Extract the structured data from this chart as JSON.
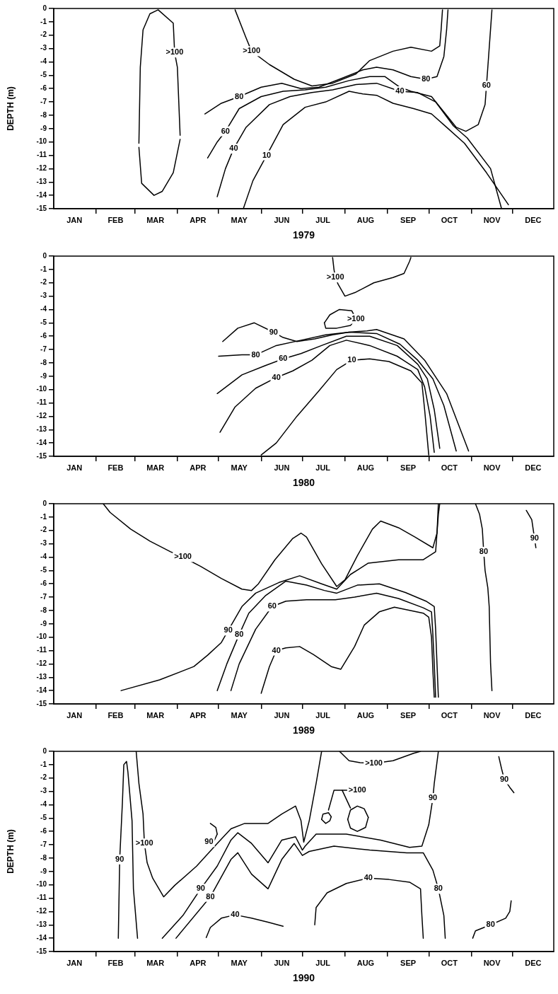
{
  "chart_data": [
    {
      "type": "line",
      "xlabel": "1979",
      "ylabel": "DEPTH (m)",
      "marker": "none",
      "grid": false,
      "xlim": [
        "--01-01",
        "--12-31"
      ],
      "ylim": [
        -15,
        0
      ],
      "xticks": [
        {
          "value": "--01-16",
          "label": "JAN"
        },
        {
          "value": "--02-01",
          "label": null
        },
        {
          "value": "--02-15",
          "label": "FEB"
        },
        {
          "value": "--03-01",
          "label": null
        },
        {
          "value": "--03-16",
          "label": "MAR"
        },
        {
          "value": "--04-01",
          "label": null
        },
        {
          "value": "--04-16",
          "label": "APR"
        },
        {
          "value": "--05-01",
          "label": null
        },
        {
          "value": "--05-16",
          "label": "MAY"
        },
        {
          "value": "--06-01",
          "label": null
        },
        {
          "value": "--06-16",
          "label": "JUN"
        },
        {
          "value": "--07-01",
          "label": null
        },
        {
          "value": "--07-16",
          "label": "JUL"
        },
        {
          "value": "--08-01",
          "label": null
        },
        {
          "value": "--08-16",
          "label": "AUG"
        },
        {
          "value": "--09-01",
          "label": null
        },
        {
          "value": "--09-16",
          "label": "SEP"
        },
        {
          "value": "--10-01",
          "label": null
        },
        {
          "value": "--10-16",
          "label": "OCT"
        },
        {
          "value": "--11-01",
          "label": null
        },
        {
          "value": "--11-16",
          "label": "NOV"
        },
        {
          "value": "--12-01",
          "label": null
        },
        {
          "value": "--12-16",
          "label": "DEC"
        }
      ],
      "yticks": [
        0,
        -1,
        -2,
        -3,
        -4,
        -5,
        -6,
        -7,
        -8,
        -9,
        -10,
        -11,
        -12,
        -13,
        -14,
        -15
      ],
      "series": [
        {
          "color": "#000000",
          "x": [
            "--03-04",
            "--03-05",
            "--03-07",
            "--03-12",
            "--03-18",
            "--03-29",
            "--03-30",
            "--04-01",
            "--04-03"
          ],
          "values": [
            -10.1,
            -4.4,
            -1.6,
            -0.4,
            -0.1,
            -1.1,
            -3.3,
            -4.4,
            -9.5
          ]
        },
        {
          "color": "#000000",
          "x": [
            "--03-04",
            "--03-06",
            "--03-15",
            "--03-21",
            "--03-29",
            "--04-03"
          ],
          "values": [
            -10.4,
            -13.1,
            -14.0,
            -13.7,
            -12.3,
            -9.8
          ]
        },
        {
          "color": "#000000",
          "x": [
            "--05-13",
            "--05-21",
            "--05-25",
            "--06-07",
            "--06-25",
            "--07-08",
            "--07-23",
            "--08-09",
            "--08-19",
            "--09-05",
            "--09-18",
            "--10-03",
            "--10-09",
            "--10-10",
            "--10-11"
          ],
          "values": [
            -0.1,
            -2.2,
            -3.2,
            -4.2,
            -5.3,
            -5.8,
            -5.6,
            -4.9,
            -3.9,
            -3.2,
            -2.9,
            -3.2,
            -2.8,
            -1.6,
            -0.1
          ]
        },
        {
          "color": "#000000",
          "x": [
            "--04-21",
            "--05-03",
            "--05-16",
            "--06-01",
            "--06-16",
            "--06-30",
            "--07-13",
            "--07-28",
            "--08-14",
            "--08-24",
            "--09-05",
            "--09-18",
            "--09-29",
            "--10-07",
            "--10-12",
            "--10-14",
            "--10-15"
          ],
          "values": [
            -7.9,
            -7.1,
            -6.6,
            -5.9,
            -5.6,
            -6.0,
            -5.9,
            -5.3,
            -4.6,
            -4.4,
            -4.6,
            -5.1,
            -5.3,
            -5.1,
            -3.6,
            -1.6,
            -0.1
          ]
        },
        {
          "color": "#000000",
          "x": [
            "--04-23",
            "--04-30",
            "--05-06",
            "--05-16",
            "--06-01",
            "--06-17",
            "--07-03",
            "--07-18",
            "--08-04",
            "--08-19",
            "--08-30",
            "--09-10",
            "--09-18",
            "--10-03",
            "--10-14",
            "--10-21",
            "--10-28",
            "--11-06",
            "--11-11",
            "--11-12",
            "--11-13",
            "--11-16"
          ],
          "values": [
            -11.2,
            -10.0,
            -9.2,
            -7.5,
            -6.6,
            -6.2,
            -6.1,
            -5.9,
            -5.4,
            -5.1,
            -5.1,
            -5.9,
            -6.2,
            -6.6,
            -8.0,
            -8.9,
            -9.2,
            -8.7,
            -7.2,
            -5.8,
            -4.4,
            -0.1
          ]
        },
        {
          "color": "#000000",
          "x": [
            "--04-30",
            "--05-06",
            "--05-12",
            "--05-21",
            "--06-07",
            "--06-22",
            "--07-08",
            "--07-23",
            "--08-09",
            "--08-24",
            "--09-10",
            "--09-23",
            "--10-06",
            "--10-19",
            "--10-29",
            "--11-15",
            "--11-23"
          ],
          "values": [
            -14.1,
            -12.0,
            -10.5,
            -8.9,
            -7.2,
            -6.6,
            -6.3,
            -6.1,
            -5.7,
            -5.6,
            -6.2,
            -6.3,
            -7.0,
            -8.8,
            -9.7,
            -12.0,
            -15.0
          ]
        },
        {
          "color": "#000000",
          "x": [
            "--05-19",
            "--05-26",
            "--06-05",
            "--06-17",
            "--07-03",
            "--07-18",
            "--08-04",
            "--08-14",
            "--08-24",
            "--09-05",
            "--09-20",
            "--10-03",
            "--10-14",
            "--10-27",
            "--11-12",
            "--11-28"
          ],
          "values": [
            -15.0,
            -12.9,
            -11.0,
            -8.7,
            -7.4,
            -7.0,
            -6.2,
            -6.4,
            -6.5,
            -7.1,
            -7.5,
            -7.9,
            -8.9,
            -10.1,
            -12.3,
            -14.7
          ]
        }
      ],
      "annotations": [
        {
          "text": ">100",
          "x": "--03-30",
          "y": -3.3
        },
        {
          "text": ">100",
          "x": "--05-25",
          "y": -3.2
        },
        {
          "text": "80",
          "x": "--05-16",
          "y": -6.6
        },
        {
          "text": "60",
          "x": "--05-06",
          "y": -9.2
        },
        {
          "text": "40",
          "x": "--05-12",
          "y": -10.5
        },
        {
          "text": "10",
          "x": "--06-05",
          "y": -11.0
        },
        {
          "text": "80",
          "x": "--09-29",
          "y": -5.3
        },
        {
          "text": "40",
          "x": "--09-10",
          "y": -6.2
        },
        {
          "text": "60",
          "x": "--11-12",
          "y": -5.8
        }
      ]
    },
    {
      "type": "line",
      "xlabel": "1980",
      "marker": "none",
      "grid": false,
      "xlim": [
        "--01-01",
        "--12-31"
      ],
      "ylim": [
        -15,
        0
      ],
      "xticks": [
        {
          "value": "--01-16",
          "label": "JAN"
        },
        {
          "value": "--02-01",
          "label": null
        },
        {
          "value": "--02-15",
          "label": "FEB"
        },
        {
          "value": "--03-01",
          "label": null
        },
        {
          "value": "--03-16",
          "label": "MAR"
        },
        {
          "value": "--04-01",
          "label": null
        },
        {
          "value": "--04-16",
          "label": "APR"
        },
        {
          "value": "--05-01",
          "label": null
        },
        {
          "value": "--05-16",
          "label": "MAY"
        },
        {
          "value": "--06-01",
          "label": null
        },
        {
          "value": "--06-16",
          "label": "JUN"
        },
        {
          "value": "--07-01",
          "label": null
        },
        {
          "value": "--07-16",
          "label": "JUL"
        },
        {
          "value": "--08-01",
          "label": null
        },
        {
          "value": "--08-16",
          "label": "AUG"
        },
        {
          "value": "--09-01",
          "label": null
        },
        {
          "value": "--09-16",
          "label": "SEP"
        },
        {
          "value": "--10-01",
          "label": null
        },
        {
          "value": "--10-16",
          "label": "OCT"
        },
        {
          "value": "--11-01",
          "label": null
        },
        {
          "value": "--11-16",
          "label": "NOV"
        },
        {
          "value": "--12-01",
          "label": null
        },
        {
          "value": "--12-16",
          "label": "DEC"
        }
      ],
      "yticks": [
        0,
        -1,
        -2,
        -3,
        -4,
        -5,
        -6,
        -7,
        -8,
        -9,
        -10,
        -11,
        -12,
        -13,
        -14,
        -15
      ],
      "series": [
        {
          "color": "#000000",
          "x": [
            "--07-23",
            "--07-24",
            "--07-25",
            "--07-27",
            "--08-01",
            "--08-09",
            "--08-22",
            "--09-05",
            "--09-13",
            "--09-17",
            "--09-18"
          ],
          "values": [
            -0.1,
            -1.0,
            -1.6,
            -2.1,
            -3.0,
            -2.7,
            -2.0,
            -1.6,
            -1.3,
            -0.4,
            -0.1
          ]
        },
        {
          "color": "#000000",
          "x": [
            "--07-17",
            "--07-21",
            "--07-28",
            "--08-06",
            "--08-09"
          ],
          "values": [
            -5.0,
            -4.4,
            -4.0,
            -4.1,
            -4.7
          ]
        },
        {
          "color": "#000000",
          "x": [
            "--07-17",
            "--07-18",
            "--07-26",
            "--08-05",
            "--08-09"
          ],
          "values": [
            -5.0,
            -5.4,
            -5.4,
            -5.2,
            -4.7
          ]
        },
        {
          "color": "#000000",
          "x": [
            "--05-04",
            "--05-15",
            "--05-27",
            "--06-10",
            "--06-17",
            "--06-27",
            "--07-10",
            "--07-23",
            "--08-04",
            "--08-17",
            "--08-24",
            "--09-13",
            "--09-28",
            "--10-14",
            "--10-30"
          ],
          "values": [
            -6.4,
            -5.4,
            -5.0,
            -5.7,
            -6.1,
            -6.4,
            -6.2,
            -5.9,
            -5.7,
            -5.6,
            -5.5,
            -6.2,
            -7.8,
            -10.3,
            -14.6
          ]
        },
        {
          "color": "#000000",
          "x": [
            "--05-01",
            "--05-18",
            "--05-28",
            "--06-12",
            "--06-30",
            "--07-18",
            "--08-04",
            "--08-24",
            "--09-10",
            "--09-23",
            "--10-04",
            "--10-12",
            "--10-21"
          ],
          "values": [
            -7.5,
            -7.4,
            -7.4,
            -6.7,
            -6.3,
            -5.9,
            -5.7,
            -5.8,
            -6.6,
            -7.8,
            -9.2,
            -11.2,
            -14.6
          ]
        },
        {
          "color": "#000000",
          "x": [
            "--04-30",
            "--05-18",
            "--06-04",
            "--06-17",
            "--06-30",
            "--07-15",
            "--08-02",
            "--08-19",
            "--09-08",
            "--09-23",
            "--09-30",
            "--10-05",
            "--10-09"
          ],
          "values": [
            -10.3,
            -8.9,
            -8.2,
            -7.7,
            -7.3,
            -6.7,
            -6.0,
            -6.0,
            -6.7,
            -8.1,
            -9.2,
            -11.5,
            -14.4
          ]
        },
        {
          "color": "#000000",
          "x": [
            "--05-02",
            "--05-13",
            "--05-28",
            "--06-12",
            "--06-24",
            "--07-08",
            "--07-21",
            "--08-02",
            "--08-19",
            "--09-08",
            "--09-23",
            "--09-28",
            "--10-02",
            "--10-05"
          ],
          "values": [
            -13.2,
            -11.3,
            -9.9,
            -9.1,
            -8.6,
            -7.8,
            -6.7,
            -6.3,
            -6.7,
            -7.5,
            -8.5,
            -9.8,
            -12.0,
            -14.7
          ]
        },
        {
          "color": "#000000",
          "x": [
            "--06-01",
            "--06-12",
            "--06-27",
            "--07-13",
            "--07-26",
            "--08-06",
            "--08-19",
            "--09-02",
            "--09-18",
            "--09-26",
            "--09-28",
            "--10-01"
          ],
          "values": [
            -14.9,
            -14.0,
            -12.0,
            -10.1,
            -8.5,
            -7.8,
            -7.7,
            -7.9,
            -8.6,
            -9.5,
            -11.5,
            -14.9
          ]
        }
      ],
      "annotations": [
        {
          "text": ">100",
          "x": "--07-25",
          "y": -1.6
        },
        {
          "text": ">100",
          "x": "--08-09",
          "y": -4.7
        },
        {
          "text": "90",
          "x": "--06-10",
          "y": -5.7
        },
        {
          "text": "80",
          "x": "--05-28",
          "y": -7.4
        },
        {
          "text": "60",
          "x": "--06-17",
          "y": -7.7
        },
        {
          "text": "40",
          "x": "--06-12",
          "y": -9.1
        },
        {
          "text": "10",
          "x": "--08-06",
          "y": -7.8
        }
      ]
    },
    {
      "type": "line",
      "xlabel": "1989",
      "marker": "none",
      "grid": false,
      "xlim": [
        "--01-01",
        "--12-31"
      ],
      "ylim": [
        -15,
        0
      ],
      "xticks": [
        {
          "value": "--01-16",
          "label": "JAN"
        },
        {
          "value": "--02-01",
          "label": null
        },
        {
          "value": "--02-15",
          "label": "FEB"
        },
        {
          "value": "--03-01",
          "label": null
        },
        {
          "value": "--03-16",
          "label": "MAR"
        },
        {
          "value": "--04-01",
          "label": null
        },
        {
          "value": "--04-16",
          "label": "APR"
        },
        {
          "value": "--05-01",
          "label": null
        },
        {
          "value": "--05-16",
          "label": "MAY"
        },
        {
          "value": "--06-01",
          "label": null
        },
        {
          "value": "--06-16",
          "label": "JUN"
        },
        {
          "value": "--07-01",
          "label": null
        },
        {
          "value": "--07-16",
          "label": "JUL"
        },
        {
          "value": "--08-01",
          "label": null
        },
        {
          "value": "--08-16",
          "label": "AUG"
        },
        {
          "value": "--09-01",
          "label": null
        },
        {
          "value": "--09-16",
          "label": "SEP"
        },
        {
          "value": "--10-01",
          "label": null
        },
        {
          "value": "--10-16",
          "label": "OCT"
        },
        {
          "value": "--11-01",
          "label": null
        },
        {
          "value": "--11-16",
          "label": "NOV"
        },
        {
          "value": "--12-01",
          "label": null
        },
        {
          "value": "--12-16",
          "label": "DEC"
        }
      ],
      "yticks": [
        0,
        -1,
        -2,
        -3,
        -4,
        -5,
        -6,
        -7,
        -8,
        -9,
        -10,
        -11,
        -12,
        -13,
        -14,
        -15
      ],
      "series": [
        {
          "color": "#000000",
          "x": [
            "--02-06",
            "--02-11",
            "--02-26",
            "--03-12",
            "--03-27",
            "--04-05",
            "--04-18",
            "--05-03",
            "--05-18",
            "--05-25",
            "--05-30",
            "--06-11",
            "--06-24",
            "--06-30",
            "--07-04",
            "--07-15",
            "--07-26",
            "--08-01",
            "--08-10",
            "--08-21",
            "--08-27",
            "--09-09",
            "--09-21",
            "--10-04",
            "--10-07",
            "--10-08"
          ],
          "values": [
            0,
            -0.65,
            -1.9,
            -2.8,
            -3.6,
            -4.0,
            -4.7,
            -5.6,
            -6.4,
            -6.5,
            -6.0,
            -4.2,
            -2.6,
            -2.2,
            -2.5,
            -4.5,
            -6.2,
            -5.7,
            -3.9,
            -1.9,
            -1.3,
            -1.8,
            -2.5,
            -3.3,
            -2.2,
            0
          ]
        },
        {
          "color": "#000000",
          "x": [
            "--02-19",
            "--03-19",
            "--04-13",
            "--04-23",
            "--05-03",
            "--05-08",
            "--05-18",
            "--05-28",
            "--06-14",
            "--06-29",
            "--07-15",
            "--07-26",
            "--08-05",
            "--08-18",
            "--09-09",
            "--09-27",
            "--10-06",
            "--10-08",
            "--10-09"
          ],
          "values": [
            -14.0,
            -13.2,
            -12.2,
            -11.35,
            -10.4,
            -9.5,
            -7.7,
            -6.7,
            -5.9,
            -5.4,
            -6.0,
            -6.4,
            -5.3,
            -4.45,
            -4.2,
            -4.2,
            -3.6,
            -0.8,
            0
          ]
        },
        {
          "color": "#000000",
          "x": [
            "--04-30",
            "--05-07",
            "--05-16",
            "--05-23",
            "--06-04",
            "--06-19",
            "--07-04",
            "--07-17",
            "--07-26",
            "--08-10",
            "--08-26",
            "--09-14",
            "--09-29",
            "--10-05",
            "--10-06",
            "--10-07",
            "--10-08"
          ],
          "values": [
            -14.0,
            -12.0,
            -9.8,
            -8.2,
            -6.9,
            -5.8,
            -6.1,
            -6.5,
            -6.7,
            -6.1,
            -6.0,
            -6.65,
            -7.3,
            -7.7,
            -9.4,
            -12.0,
            -14.5
          ]
        },
        {
          "color": "#000000",
          "x": [
            "--05-10",
            "--05-16",
            "--05-28",
            "--06-09",
            "--06-19",
            "--07-04",
            "--07-25",
            "--08-08",
            "--08-24",
            "--09-09",
            "--09-27",
            "--10-03",
            "--10-04",
            "--10-05",
            "--10-06"
          ],
          "values": [
            -14.0,
            -12.0,
            -9.4,
            -7.7,
            -7.3,
            -7.2,
            -7.2,
            -7.0,
            -6.7,
            -7.1,
            -7.8,
            -8.1,
            -9.8,
            -12.0,
            -14.5
          ]
        },
        {
          "color": "#000000",
          "x": [
            "--06-01",
            "--06-07",
            "--06-12",
            "--06-19",
            "--06-29",
            "--07-09",
            "--07-22",
            "--07-29",
            "--08-08",
            "--08-15",
            "--08-26",
            "--09-06",
            "--09-27",
            "--10-01",
            "--10-03",
            "--10-04",
            "--10-05"
          ],
          "values": [
            -14.2,
            -12.2,
            -11.0,
            -10.8,
            -10.7,
            -11.3,
            -12.2,
            -12.4,
            -10.7,
            -9.1,
            -8.1,
            -7.75,
            -8.2,
            -8.5,
            -10.0,
            -12.5,
            -14.5
          ]
        },
        {
          "color": "#000000",
          "x": [
            "--11-04",
            "--11-07",
            "--11-09",
            "--11-10",
            "--11-11",
            "--11-13",
            "--11-14",
            "--11-15",
            "--11-16"
          ],
          "values": [
            0,
            -0.8,
            -1.9,
            -3.6,
            -5.0,
            -6.3,
            -7.7,
            -12.0,
            -14.0
          ]
        },
        {
          "color": "#000000",
          "x": [
            "--12-11",
            "--12-15",
            "--12-16",
            "--12-17",
            "--12-18"
          ],
          "values": [
            -0.5,
            -1.2,
            -1.9,
            -2.6,
            -3.3
          ]
        }
      ],
      "annotations": [
        {
          "text": ">100",
          "x": "--04-05",
          "y": -4.0
        },
        {
          "text": "90",
          "x": "--05-08",
          "y": -9.5
        },
        {
          "text": "80",
          "x": "--05-16",
          "y": -9.8
        },
        {
          "text": "60",
          "x": "--06-09",
          "y": -7.7
        },
        {
          "text": "40",
          "x": "--06-12",
          "y": -11.0
        },
        {
          "text": "80",
          "x": "--11-10",
          "y": -3.6
        },
        {
          "text": "90",
          "x": "--12-17",
          "y": -2.6
        }
      ]
    },
    {
      "type": "line",
      "xlabel": "1990",
      "ylabel": "DEPTH (m)",
      "marker": "none",
      "grid": false,
      "xlim": [
        "--01-01",
        "--12-31"
      ],
      "ylim": [
        -15,
        0
      ],
      "xticks": [
        {
          "value": "--01-16",
          "label": "JAN"
        },
        {
          "value": "--02-01",
          "label": null
        },
        {
          "value": "--02-15",
          "label": "FEB"
        },
        {
          "value": "--03-01",
          "label": null
        },
        {
          "value": "--03-16",
          "label": "MAR"
        },
        {
          "value": "--04-01",
          "label": null
        },
        {
          "value": "--04-16",
          "label": "APR"
        },
        {
          "value": "--05-01",
          "label": null
        },
        {
          "value": "--05-16",
          "label": "MAY"
        },
        {
          "value": "--06-01",
          "label": null
        },
        {
          "value": "--06-16",
          "label": "JUN"
        },
        {
          "value": "--07-01",
          "label": null
        },
        {
          "value": "--07-16",
          "label": "JUL"
        },
        {
          "value": "--08-01",
          "label": null
        },
        {
          "value": "--08-16",
          "label": "AUG"
        },
        {
          "value": "--09-01",
          "label": null
        },
        {
          "value": "--09-16",
          "label": "SEP"
        },
        {
          "value": "--10-01",
          "label": null
        },
        {
          "value": "--10-16",
          "label": "OCT"
        },
        {
          "value": "--11-01",
          "label": null
        },
        {
          "value": "--11-16",
          "label": "NOV"
        },
        {
          "value": "--12-01",
          "label": null
        },
        {
          "value": "--12-16",
          "label": "DEC"
        }
      ],
      "yticks": [
        0,
        -1,
        -2,
        -3,
        -4,
        -5,
        -6,
        -7,
        -8,
        -9,
        -10,
        -11,
        -12,
        -13,
        -14,
        -15
      ],
      "series": [
        {
          "color": "#000000",
          "x": [
            "--02-17",
            "--02-18",
            "--02-20",
            "--02-21",
            "--02-23",
            "--02-24",
            "--02-27",
            "--02-28",
            "--03-03"
          ],
          "values": [
            -14.0,
            -8.1,
            -3.8,
            -1.0,
            -0.76,
            -1.56,
            -5.2,
            -10.3,
            -14.0
          ]
        },
        {
          "color": "#000000",
          "x": [
            "--03-02",
            "--03-04",
            "--03-07",
            "--03-08",
            "--03-10",
            "--03-14",
            "--03-22",
            "--03-30",
            "--04-15",
            "--04-30",
            "--05-10",
            "--05-20",
            "--06-06",
            "--06-16",
            "--06-26",
            "--06-30",
            "--07-02",
            "--07-06",
            "--07-11",
            "--07-15"
          ],
          "values": [
            0,
            -2.4,
            -4.7,
            -6.9,
            -8.35,
            -9.5,
            -10.9,
            -10.05,
            -8.6,
            -6.9,
            -5.8,
            -5.4,
            -5.4,
            -4.7,
            -4.1,
            -5.2,
            -6.8,
            -5.2,
            -2.4,
            0
          ]
        },
        {
          "color": "#000000",
          "x": [
            "--03-21",
            "--04-05",
            "--04-18",
            "--04-30",
            "--05-10",
            "--05-15",
            "--05-25",
            "--06-06",
            "--06-16",
            "--06-26",
            "--07-01",
            "--07-03",
            "--07-11",
            "--08-02",
            "--08-27",
            "--09-17",
            "--09-26",
            "--10-01",
            "--10-04",
            "--10-05",
            "--10-08"
          ],
          "values": [
            -14.0,
            -12.3,
            -10.3,
            -8.6,
            -6.65,
            -6.1,
            -6.9,
            -8.35,
            -6.65,
            -6.4,
            -7.4,
            -7.1,
            -6.2,
            -6.2,
            -6.65,
            -7.2,
            -7.1,
            -5.5,
            -3.5,
            -2.4,
            0
          ]
        },
        {
          "color": "#000000",
          "x": [
            "--03-31",
            "--04-25",
            "--05-10",
            "--05-15",
            "--05-25",
            "--06-06",
            "--06-16",
            "--06-25",
            "--07-01",
            "--07-06",
            "--07-24",
            "--08-19",
            "--09-15",
            "--09-27",
            "--10-04",
            "--10-08",
            "--10-12",
            "--10-13"
          ],
          "values": [
            -14.0,
            -10.9,
            -8.1,
            -7.6,
            -9.2,
            -10.3,
            -8.1,
            -6.9,
            -7.8,
            -7.5,
            -7.1,
            -7.4,
            -7.6,
            -7.6,
            -8.9,
            -10.3,
            -12.3,
            -14.0
          ]
        },
        {
          "color": "#000000",
          "x": [
            "--04-25",
            "--04-29",
            "--04-30"
          ],
          "values": [
            -5.4,
            -5.7,
            -6.2
          ]
        },
        {
          "color": "#000000",
          "x": [
            "--04-24",
            "--04-28",
            "--04-30"
          ],
          "values": [
            -6.8,
            -6.65,
            -6.2
          ]
        },
        {
          "color": "#000000",
          "x": [
            "--07-28",
            "--08-04",
            "--08-12",
            "--08-22",
            "--09-05",
            "--09-20",
            "--09-25"
          ],
          "values": [
            0,
            -0.7,
            -0.85,
            -0.9,
            -0.7,
            -0.15,
            0
          ]
        },
        {
          "color": "#000000",
          "x": [
            "--07-15",
            "--07-16",
            "--07-20",
            "--07-22"
          ],
          "values": [
            -5.1,
            -4.7,
            -4.6,
            -4.9
          ]
        },
        {
          "color": "#000000",
          "x": [
            "--07-15",
            "--07-18",
            "--07-21",
            "--07-22"
          ],
          "values": [
            -5.1,
            -5.4,
            -5.2,
            -4.9
          ]
        },
        {
          "color": "#000000",
          "x": [
            "--08-03",
            "--08-05",
            "--08-10",
            "--08-15",
            "--08-18"
          ],
          "values": [
            -5.1,
            -4.4,
            -4.1,
            -4.3,
            -4.95
          ]
        },
        {
          "color": "#000000",
          "x": [
            "--08-03",
            "--08-05",
            "--08-10",
            "--08-16",
            "--08-18"
          ],
          "values": [
            -5.1,
            -5.75,
            -6.0,
            -5.7,
            -4.95
          ]
        },
        {
          "color": "#000000",
          "x": [
            "--07-20",
            "--07-24",
            "--08-10"
          ],
          "values": [
            -4.4,
            -2.92,
            -2.92
          ]
        },
        {
          "color": "#000000",
          "x": [
            "--07-30",
            "--08-05"
          ],
          "values": [
            -2.92,
            -4.25
          ]
        },
        {
          "color": "#000000",
          "x": [
            "--07-10",
            "--07-11",
            "--07-19",
            "--08-02",
            "--08-18",
            "--09-02",
            "--09-17",
            "--09-25",
            "--09-26",
            "--09-27"
          ],
          "values": [
            -13.0,
            -11.7,
            -10.6,
            -9.9,
            -9.5,
            -9.6,
            -9.8,
            -10.3,
            -12.3,
            -14.0
          ]
        },
        {
          "color": "#000000",
          "x": [
            "--04-22",
            "--04-25",
            "--05-03",
            "--05-13",
            "--05-25",
            "--06-06",
            "--06-17"
          ],
          "values": [
            -13.95,
            -13.2,
            -12.5,
            -12.25,
            -12.5,
            -12.8,
            -13.1
          ]
        },
        {
          "color": "#000000",
          "x": [
            "--11-21",
            "--11-23",
            "--11-25",
            "--11-29",
            "--12-02"
          ],
          "values": [
            -0.4,
            -1.3,
            -2.1,
            -2.7,
            -3.1
          ]
        },
        {
          "color": "#000000",
          "x": [
            "--11-02",
            "--11-04",
            "--11-15",
            "--11-26",
            "--11-29",
            "--11-30"
          ],
          "values": [
            -14.0,
            -13.45,
            -13.0,
            -12.5,
            -12.0,
            -11.2
          ]
        }
      ],
      "annotations": [
        {
          "text": "90",
          "x": "--02-18",
          "y": -8.1
        },
        {
          "text": ">100",
          "x": "--03-08",
          "y": -6.9
        },
        {
          "text": "90",
          "x": "--04-18",
          "y": -10.3
        },
        {
          "text": "80",
          "x": "--04-25",
          "y": -10.9
        },
        {
          "text": "90",
          "x": "--04-24",
          "y": -6.8
        },
        {
          "text": ">100",
          "x": "--08-22",
          "y": -0.9
        },
        {
          "text": ">100",
          "x": "--08-10",
          "y": -2.92
        },
        {
          "text": "40",
          "x": "--08-18",
          "y": -9.5
        },
        {
          "text": "40",
          "x": "--05-13",
          "y": -12.25
        },
        {
          "text": "90",
          "x": "--10-04",
          "y": -3.5
        },
        {
          "text": "80",
          "x": "--10-08",
          "y": -10.3
        },
        {
          "text": "90",
          "x": "--11-25",
          "y": -2.1
        },
        {
          "text": "80",
          "x": "--11-15",
          "y": -13.0
        }
      ]
    }
  ]
}
